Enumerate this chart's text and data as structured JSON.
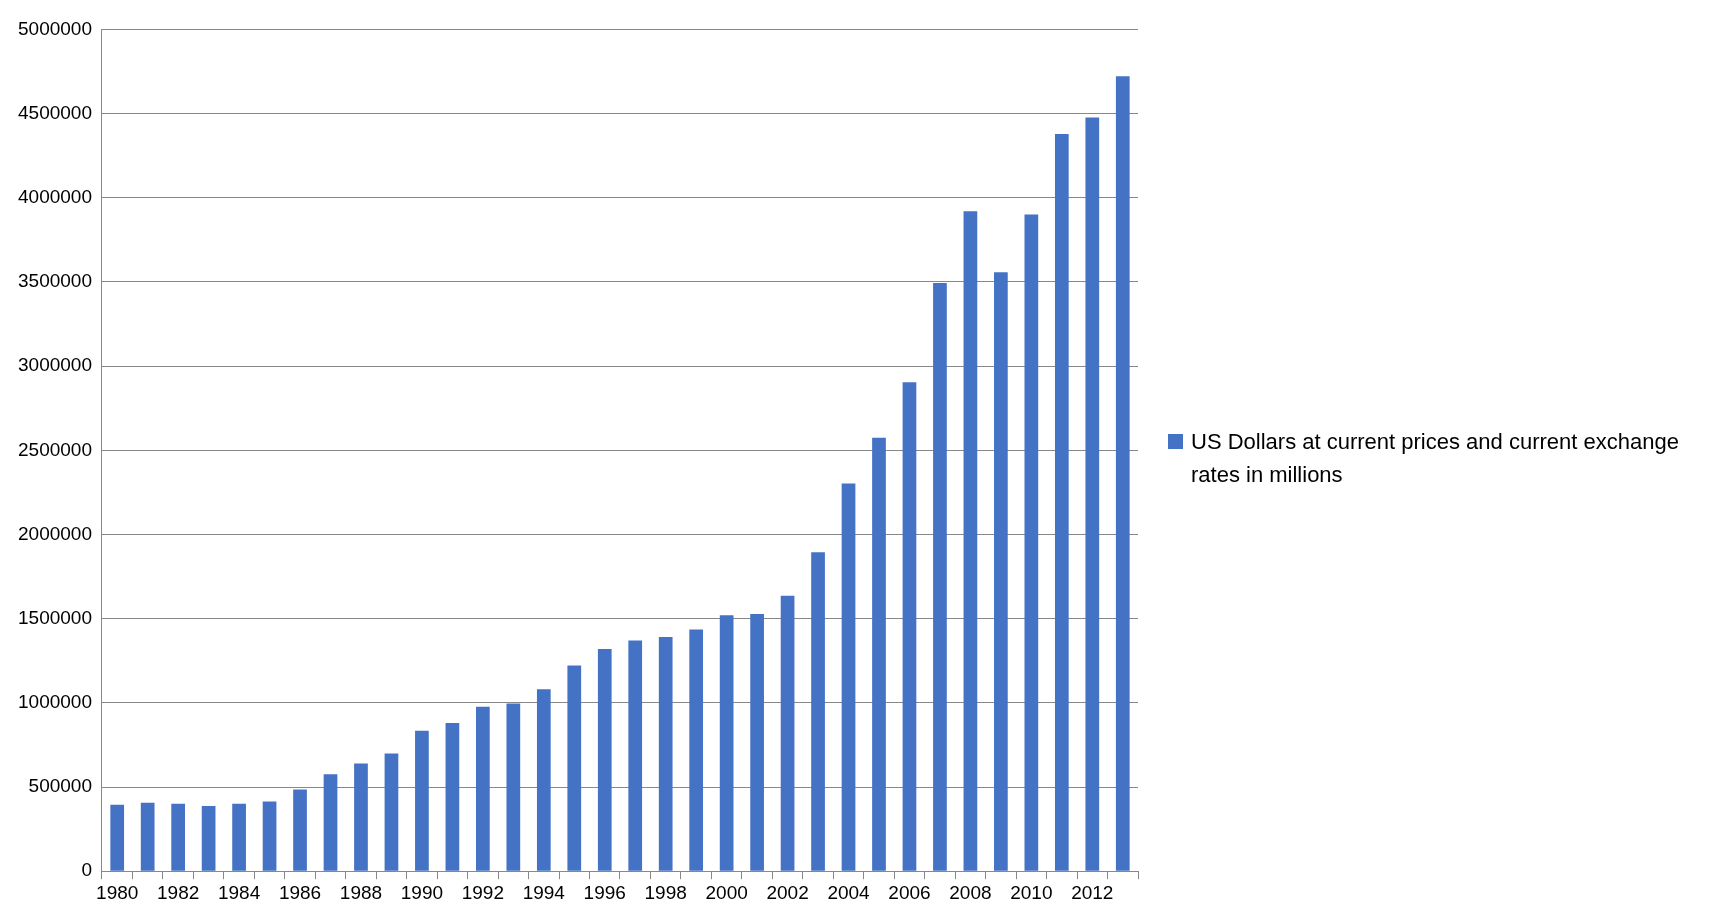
{
  "chart_data": {
    "type": "bar",
    "categories": [
      "1980",
      null,
      "1982",
      null,
      "1984",
      null,
      "1986",
      null,
      "1988",
      null,
      "1990",
      null,
      "1992",
      null,
      "1994",
      null,
      "1996",
      null,
      "1998",
      null,
      "2000",
      null,
      "2002",
      null,
      "2004",
      null,
      "2006",
      null,
      "2008",
      null,
      "2010",
      null,
      "2012",
      null
    ],
    "series": [
      {
        "name": "US Dollars at current prices and current exchange rates in millions",
        "color": "#4472c4",
        "values": [
          395000,
          407000,
          400000,
          388000,
          400000,
          414000,
          485000,
          576000,
          640000,
          699000,
          834000,
          880000,
          977000,
          996000,
          1080000,
          1222000,
          1320000,
          1371000,
          1391000,
          1436000,
          1520000,
          1527000,
          1636000,
          1895000,
          2303000,
          2574000,
          2904000,
          3493000,
          3920000,
          3558000,
          3900000,
          4379000,
          4476000,
          4722000
        ]
      }
    ],
    "ylim": [
      0,
      5000000
    ],
    "yticks": [
      0,
      500000,
      1000000,
      1500000,
      2000000,
      2500000,
      3000000,
      3500000,
      4000000,
      4500000,
      5000000
    ],
    "grid": "y",
    "legend": "right"
  }
}
